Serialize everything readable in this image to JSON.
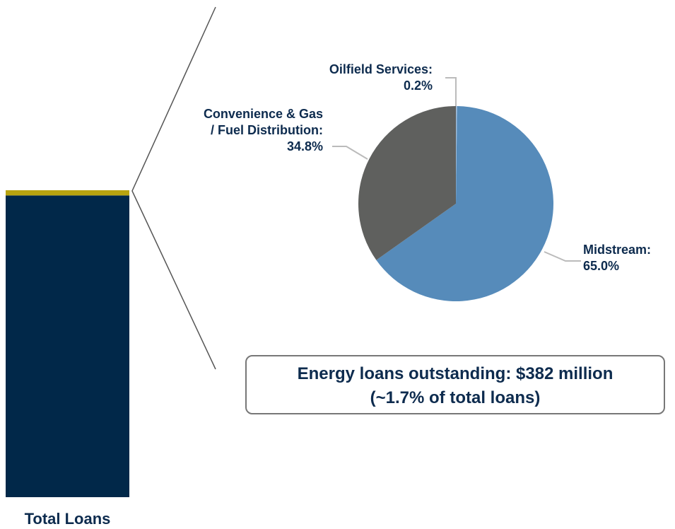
{
  "chart_data": [
    {
      "type": "bar",
      "categories": [
        "Total Loans"
      ],
      "series": [
        {
          "color": "#012849",
          "values": [
            98.3
          ]
        },
        {
          "color": "#b8a410",
          "values": [
            1.7
          ]
        }
      ]
    },
    {
      "type": "pie",
      "categories": [
        "Oilfield Services:",
        "Midstream:",
        "Convenience & Gas / Fuel Distribution:"
      ],
      "values": [
        0.2,
        65.0,
        34.8
      ],
      "value_labels": [
        "0.2%",
        "65.0%",
        "34.8%"
      ],
      "colors": [
        "#9dbbd9",
        "#568bba",
        "#5f605e"
      ],
      "annotations": [
        "Energy loans outstanding: $382 million",
        "(~1.7% of total loans)"
      ]
    }
  ]
}
